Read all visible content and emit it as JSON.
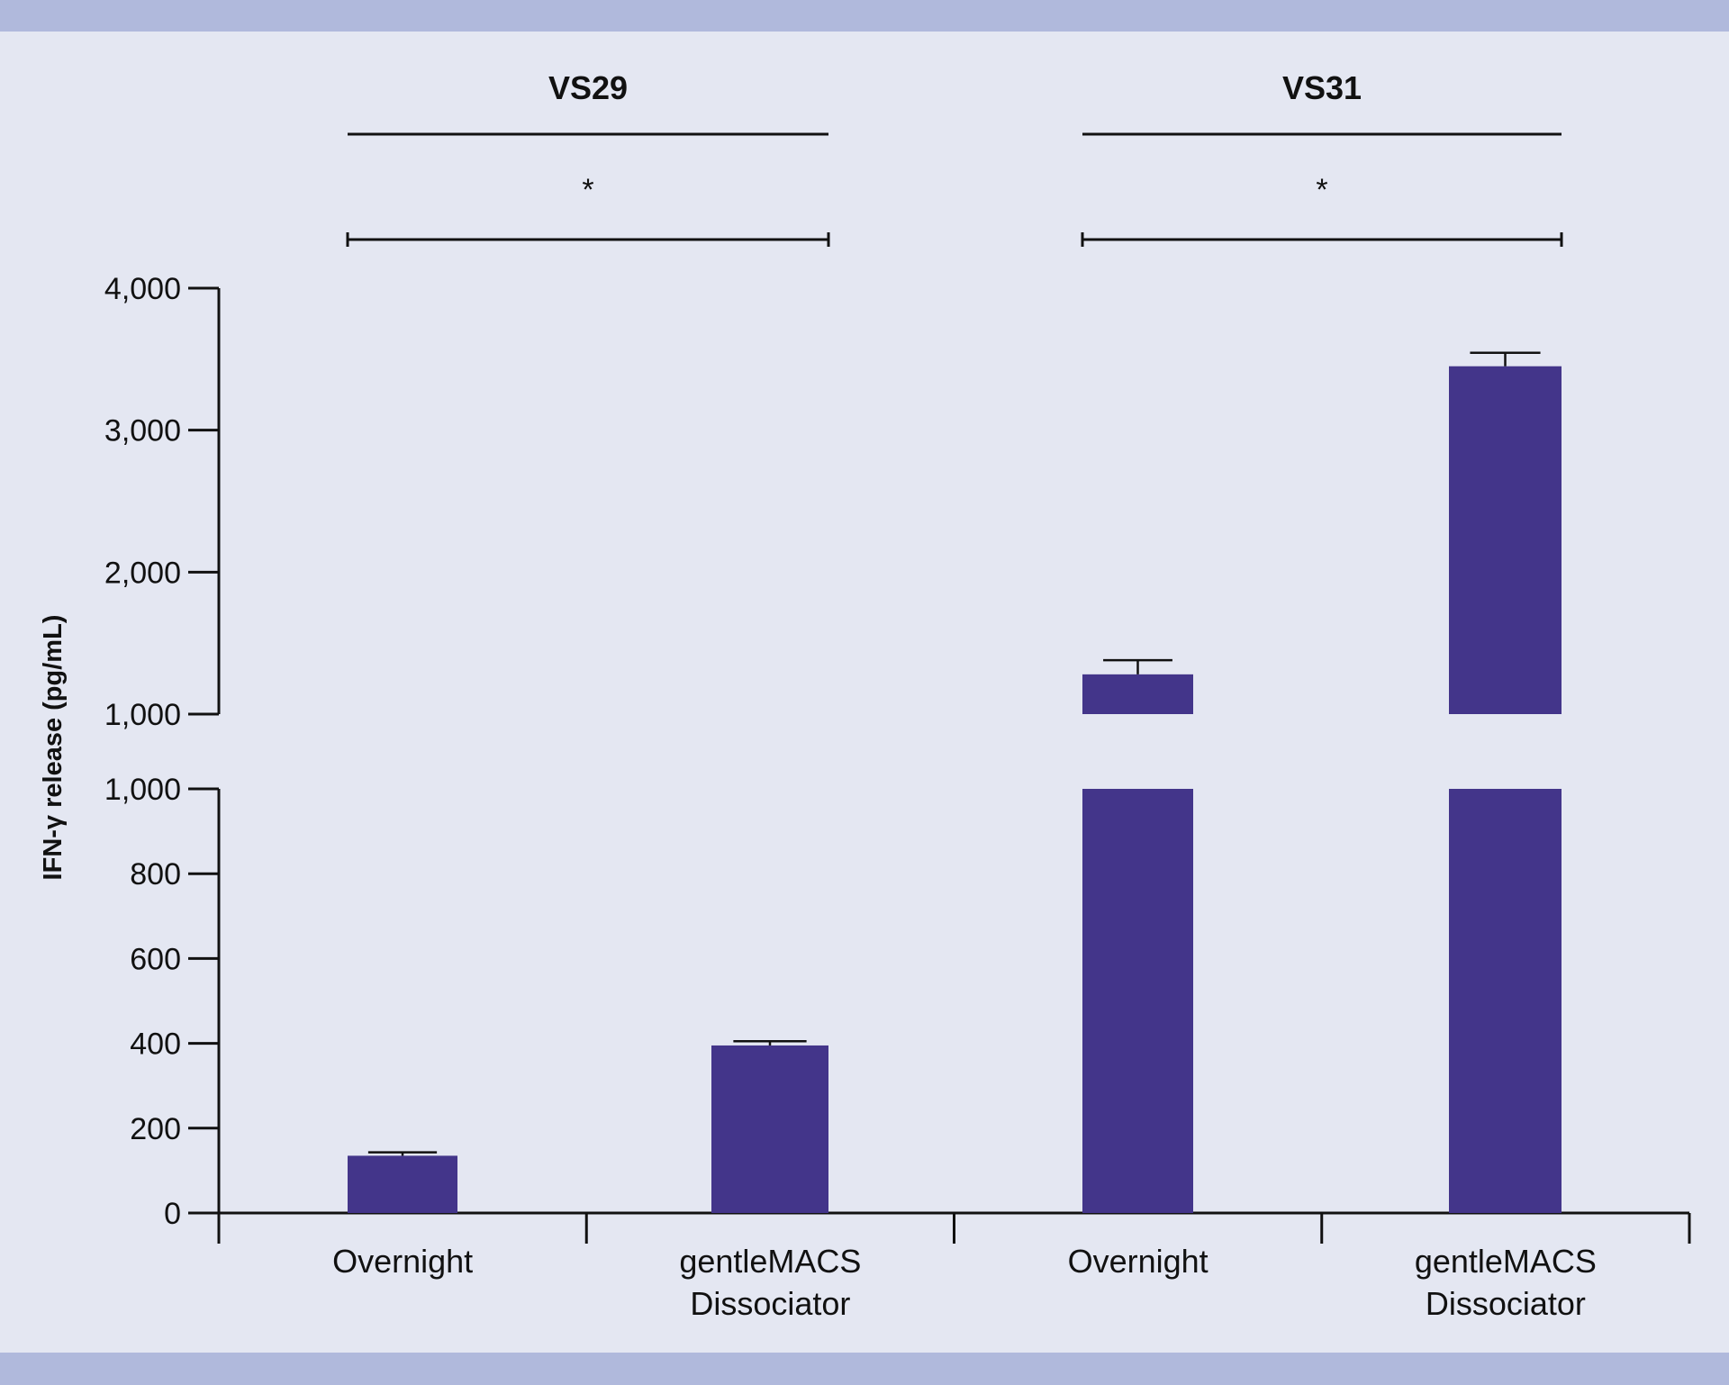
{
  "chart_data": {
    "type": "bar",
    "title": "",
    "ylabel": "IFN-γ release (pg/mL)",
    "xlabel": "",
    "axis_break": true,
    "lower_ylim": [
      0,
      1000
    ],
    "upper_ylim": [
      1000,
      4000
    ],
    "lower_ticks": [
      "0",
      "200",
      "400",
      "600",
      "800",
      "1,000"
    ],
    "upper_ticks": [
      "1,000",
      "2,000",
      "3,000",
      "4,000"
    ],
    "groups": [
      {
        "name": "VS29",
        "significance": "*",
        "categories": [
          "Overnight",
          "gentleMACS Dissociator"
        ],
        "values": [
          135,
          395
        ],
        "errors": [
          8,
          10
        ]
      },
      {
        "name": "VS31",
        "significance": "*",
        "categories": [
          "Overnight",
          "gentleMACS Dissociator"
        ],
        "values": [
          1280,
          3450
        ],
        "errors": [
          100,
          95
        ]
      }
    ],
    "colors": {
      "bar": "#43358a",
      "axis": "#111111"
    }
  }
}
